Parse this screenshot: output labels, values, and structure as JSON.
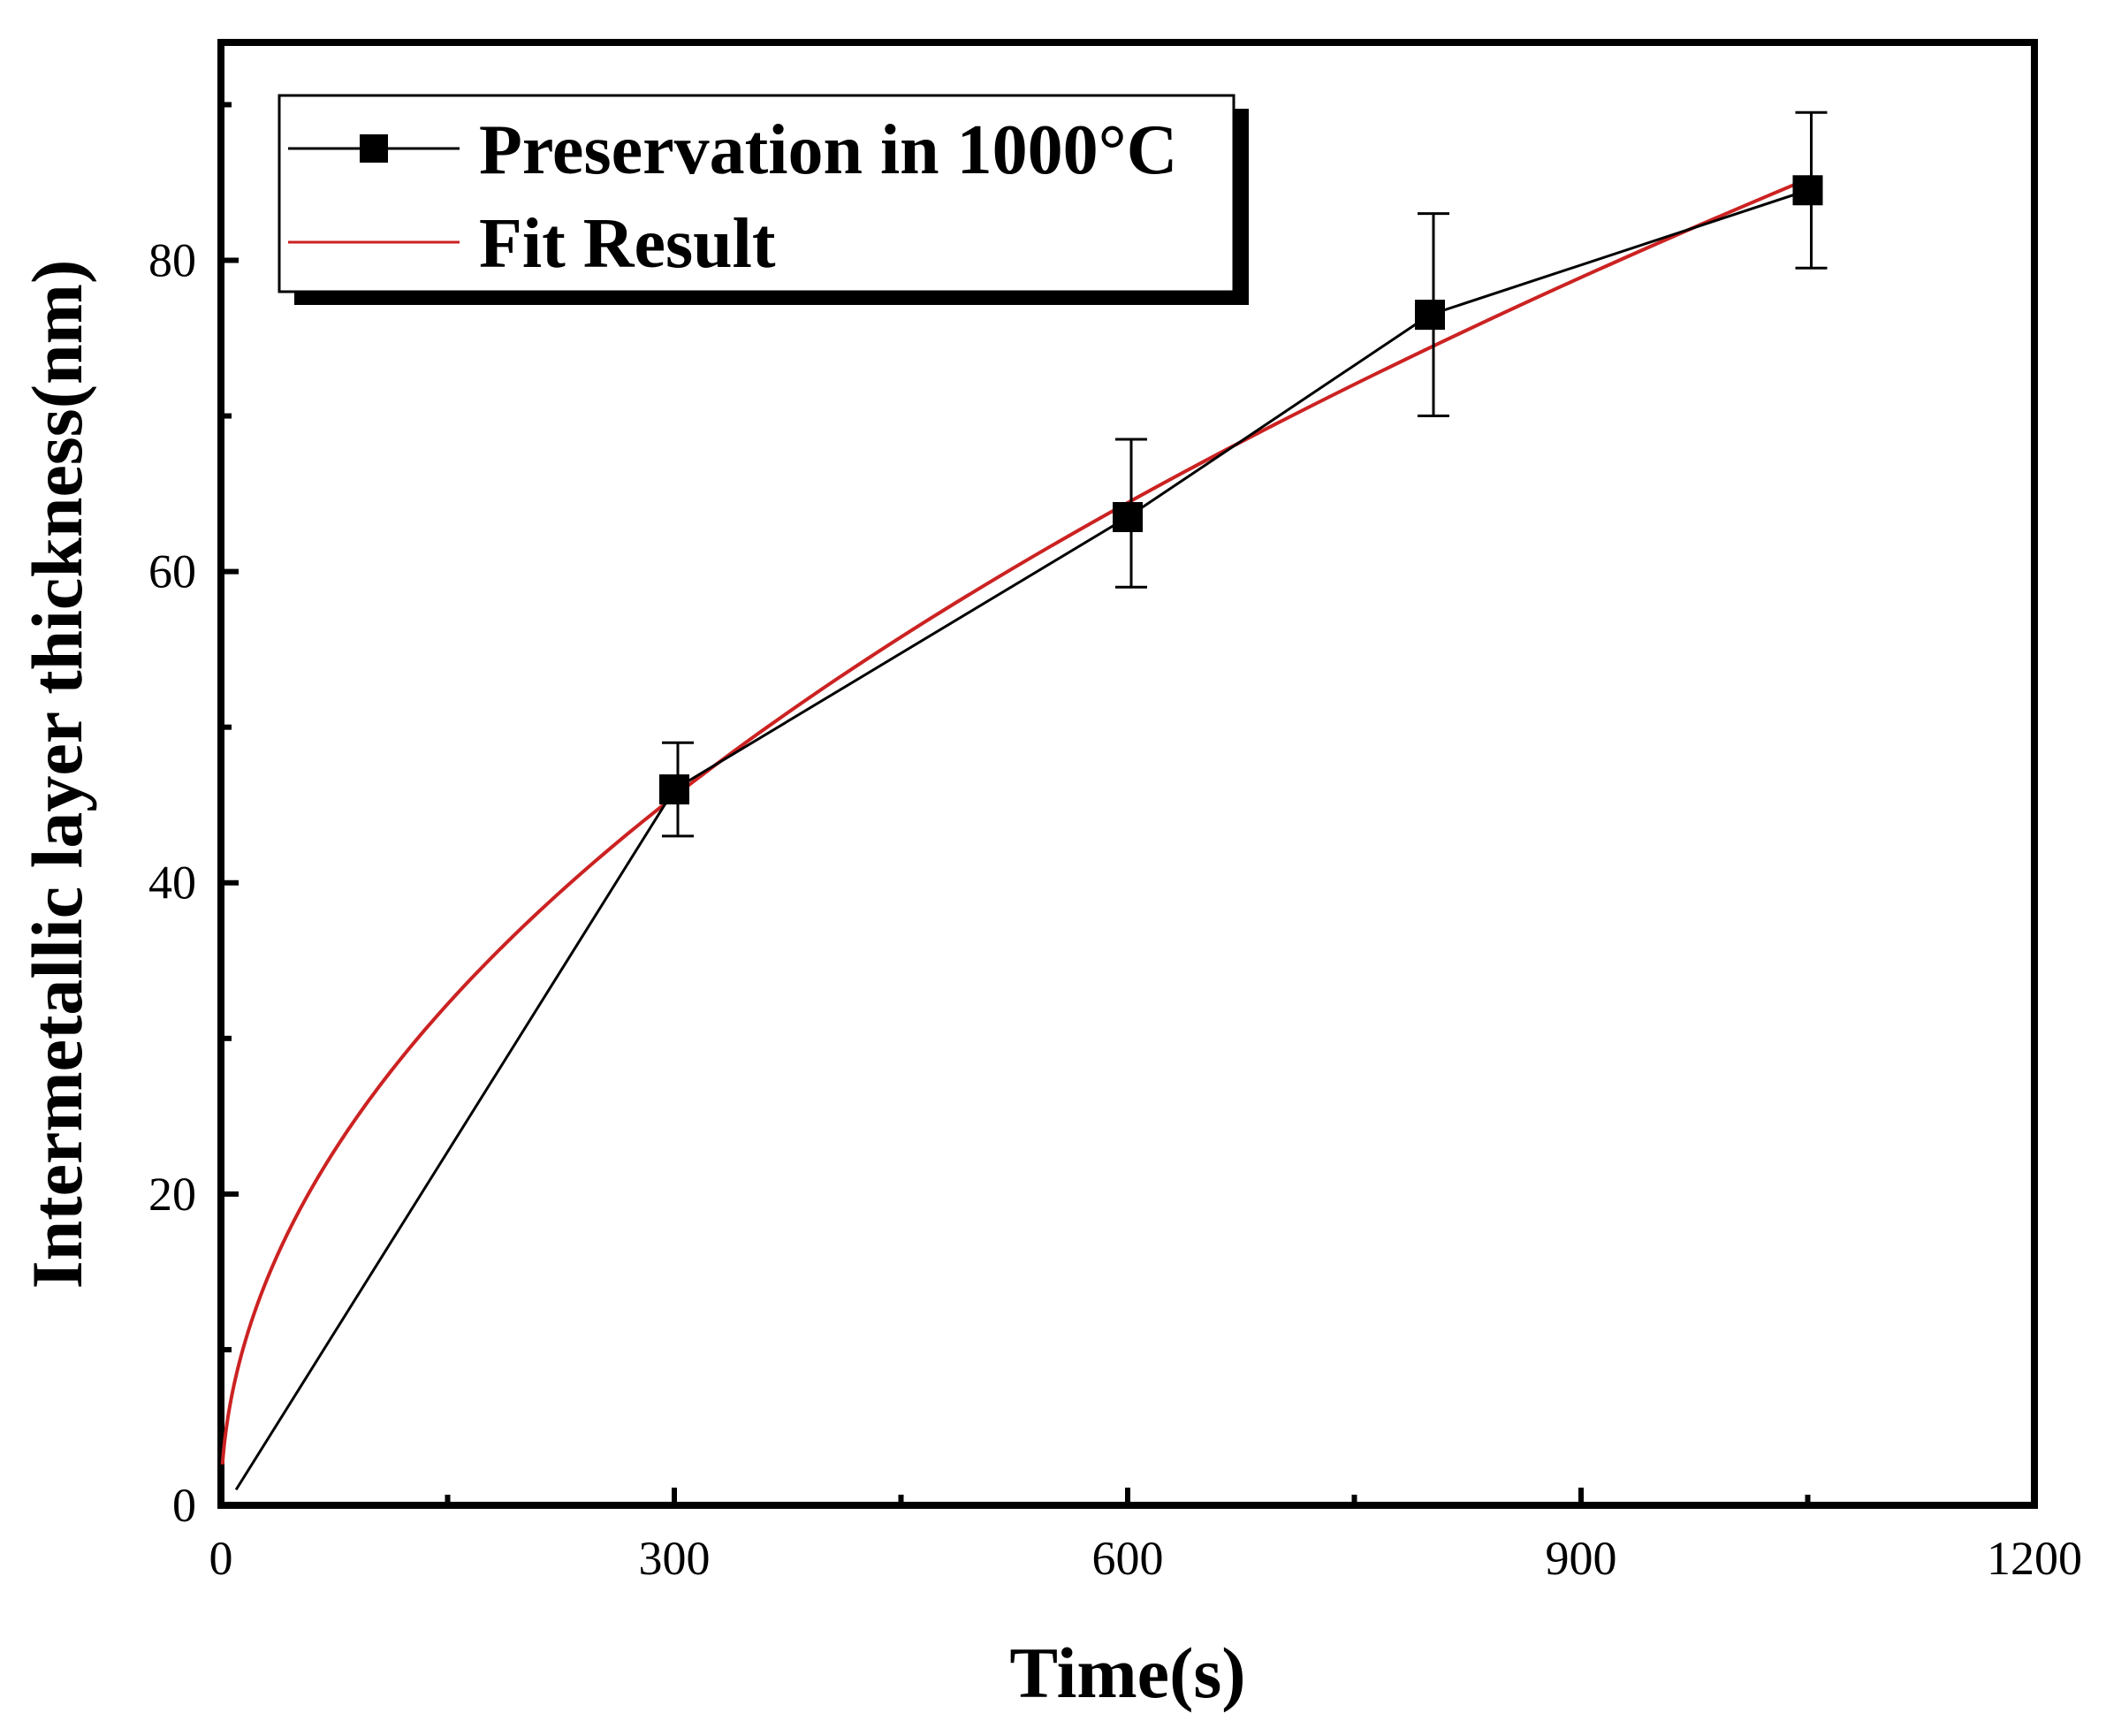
{
  "chart_data": {
    "type": "line",
    "title": "",
    "xlabel": "Time(s)",
    "ylabel": "Intermetallic layer thickness(nm)",
    "xlim": [
      0,
      1200
    ],
    "ylim": [
      0,
      94
    ],
    "x_ticks": [
      0,
      300,
      600,
      900,
      1200
    ],
    "x_tick_labels": [
      "0",
      "300",
      "600",
      "900",
      "1200"
    ],
    "x_minor_ticks": [
      150,
      450,
      750,
      1050
    ],
    "y_ticks": [
      0,
      20,
      40,
      60,
      80
    ],
    "y_tick_labels": [
      "0",
      "20",
      "40",
      "60",
      "80"
    ],
    "y_minor_ticks": [
      10,
      30,
      50,
      70,
      90
    ],
    "grid": false,
    "legend_position": "top-left",
    "series": [
      {
        "name": "Preservation in 1000°C",
        "style": "line-with-square-markers",
        "color": "#000000",
        "x": [
          10,
          300,
          600,
          800,
          1050
        ],
        "y": [
          1,
          46,
          63.5,
          76.5,
          84.5
        ],
        "error_low": [
          null,
          43,
          59,
          70,
          79.5
        ],
        "error_high": [
          null,
          49,
          68.5,
          83,
          89.5
        ]
      },
      {
        "name": "Fit Result",
        "style": "line",
        "color": "#cc2222",
        "fit_form": "y = k * sqrt(t)",
        "k": 2.63,
        "t_range": [
          1,
          1050
        ]
      }
    ]
  }
}
